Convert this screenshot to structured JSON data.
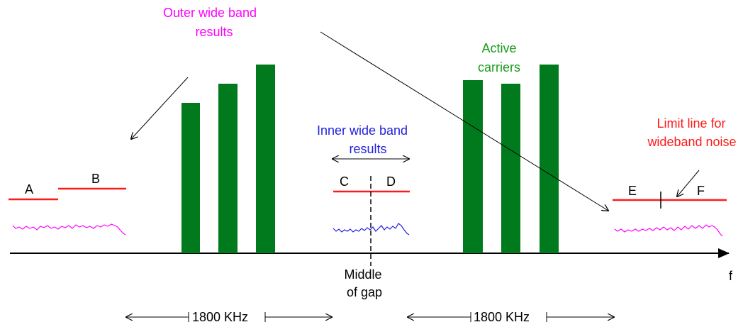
{
  "labels": {
    "outer_line1": "Outer wide band",
    "outer_line2": "results",
    "active_line1": "Active",
    "active_line2": "carriers",
    "inner_line1": "Inner wide band",
    "inner_line2": "results",
    "limit_line1": "Limit line for",
    "limit_line2": "wideband noise",
    "a": "A",
    "b": "B",
    "c": "C",
    "d": "D",
    "e": "E",
    "f_seg": "F",
    "middle_line1": "Middle",
    "middle_line2": "of gap",
    "axis_f": "f",
    "span_left": "1800 KHz",
    "span_right": "1800 KHz"
  },
  "colors": {
    "outer": "#ff00ff",
    "carrier": "#007a1c",
    "carrier_label": "#1a9a1a",
    "inner": "#2222dd",
    "limit": "#ff1a1a",
    "axis": "#000000"
  }
}
